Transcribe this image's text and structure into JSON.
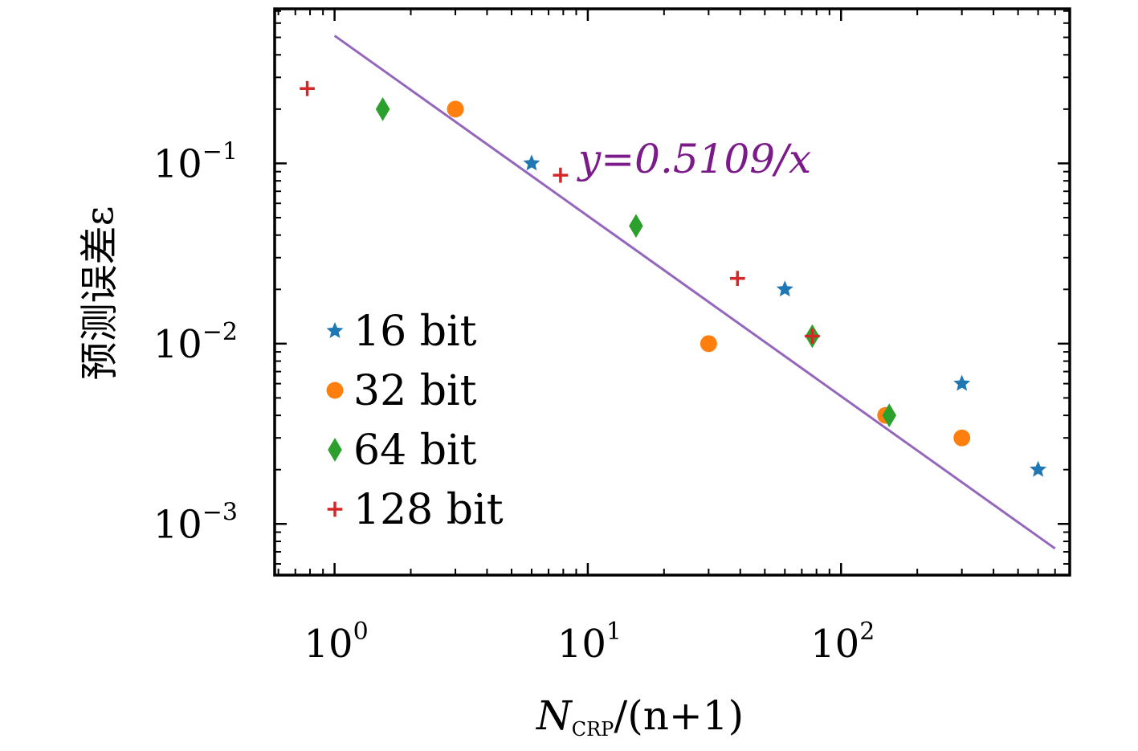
{
  "chart_data": {
    "type": "scatter",
    "xscale": "log",
    "yscale": "log",
    "xlim": [
      0.58,
      800
    ],
    "ylim": [
      0.00052,
      0.72
    ],
    "xlabel": {
      "main": "N",
      "sub": "CRP",
      "rest": "/(n+1)"
    },
    "ylabel": "预测误差ε",
    "x_ticks": [
      {
        "value": 1,
        "base": "10",
        "exp": "0"
      },
      {
        "value": 10,
        "base": "10",
        "exp": "1"
      },
      {
        "value": 100,
        "base": "10",
        "exp": "2"
      }
    ],
    "y_ticks": [
      {
        "value": 0.1,
        "base": "10",
        "exp": "−1"
      },
      {
        "value": 0.01,
        "base": "10",
        "exp": "−2"
      },
      {
        "value": 0.001,
        "base": "10",
        "exp": "−3"
      }
    ],
    "legend_position": "lower-left",
    "series": [
      {
        "name": "16 bit",
        "marker": "star",
        "color": "#1f77b4",
        "x": [
          6,
          60,
          300,
          600
        ],
        "y": [
          0.1,
          0.02,
          0.006,
          0.002
        ]
      },
      {
        "name": "32 bit",
        "marker": "circle",
        "color": "#ff7f0e",
        "x": [
          3,
          30,
          150,
          300
        ],
        "y": [
          0.2,
          0.01,
          0.004,
          0.003
        ]
      },
      {
        "name": "64 bit",
        "marker": "diamond",
        "color": "#2ca02c",
        "x": [
          1.55,
          15.5,
          77,
          155
        ],
        "y": [
          0.2,
          0.045,
          0.011,
          0.004
        ]
      },
      {
        "name": "128 bit",
        "marker": "plus",
        "color": "#d62728",
        "x": [
          0.78,
          7.8,
          39,
          77
        ],
        "y": [
          0.26,
          0.086,
          0.023,
          0.011
        ]
      }
    ],
    "fit_line": {
      "label": "y=0.5109/x",
      "coefficient": 0.5109,
      "x_range": [
        1,
        700
      ],
      "color": "#9467bd",
      "label_color": "#7b1b8a"
    }
  }
}
